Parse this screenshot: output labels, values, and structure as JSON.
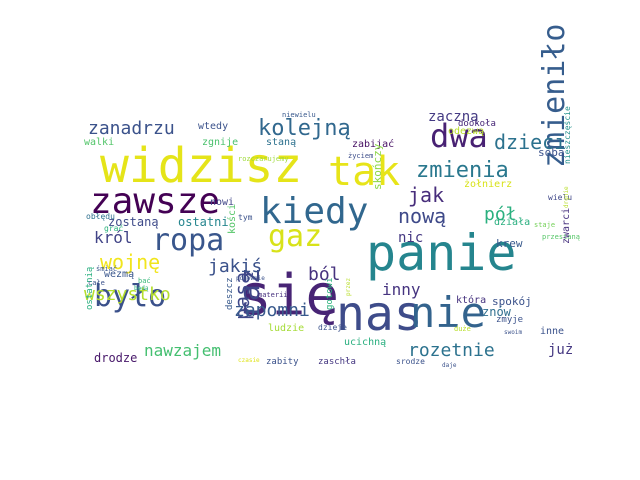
{
  "words": [
    {
      "text": "widzisz",
      "color": "#e5e419"
    },
    {
      "text": "się",
      "color": "#482475"
    },
    {
      "text": "panie",
      "color": "#25858e"
    },
    {
      "text": "nas",
      "color": "#3e4c8a"
    },
    {
      "text": "nie",
      "color": "#33638d"
    },
    {
      "text": "tak",
      "color": "#e7e419"
    },
    {
      "text": "zawsze",
      "color": "#440154"
    },
    {
      "text": "kiedy",
      "color": "#31678e"
    },
    {
      "text": "gaz",
      "color": "#d8e219"
    },
    {
      "text": "ropa",
      "color": "#39568c"
    },
    {
      "text": "było",
      "color": "#3b518b"
    },
    {
      "text": "dwa",
      "color": "#482173"
    },
    {
      "text": "zmieniło",
      "color": "#365d8d"
    },
    {
      "text": "raz",
      "color": "#404688"
    },
    {
      "text": "zmienia",
      "color": "#2a788e"
    },
    {
      "text": "kolejną",
      "color": "#31688e"
    },
    {
      "text": "dzieci",
      "color": "#2c728e"
    },
    {
      "text": "zanadrzu",
      "color": "#3b528b"
    },
    {
      "text": "wojnę",
      "color": "#f1e51d"
    },
    {
      "text": "jak",
      "color": "#472d7b"
    },
    {
      "text": "pasą",
      "color": "#3f4889"
    },
    {
      "text": "nową",
      "color": "#3e4989"
    },
    {
      "text": "pół",
      "color": "#2ab07f"
    },
    {
      "text": "król",
      "color": "#414487"
    },
    {
      "text": "wszystko",
      "color": "#b5de2b"
    },
    {
      "text": "jakiś",
      "color": "#3b528b"
    },
    {
      "text": "ból",
      "color": "#46327e"
    },
    {
      "text": "zapomni",
      "color": "#38598c"
    },
    {
      "text": "inny",
      "color": "#463480"
    },
    {
      "text": "rozetnie",
      "color": "#2c728e"
    },
    {
      "text": "nawzajem",
      "color": "#44bf70"
    },
    {
      "text": "zaczną",
      "color": "#443a83"
    },
    {
      "text": "nic",
      "color": "#453882"
    },
    {
      "text": "znów",
      "color": "#2e6e8e"
    },
    {
      "text": "już",
      "color": "#453882"
    },
    {
      "text": "wtedy",
      "color": "#3b528b"
    },
    {
      "text": "odezwą",
      "color": "#b8de29"
    },
    {
      "text": "zgnije",
      "color": "#4ac16d"
    },
    {
      "text": "walki",
      "color": "#52c569"
    },
    {
      "text": "staną",
      "color": "#2d718e"
    },
    {
      "text": "zabijać",
      "color": "#471063"
    },
    {
      "text": "dookoła",
      "color": "#482878"
    },
    {
      "text": "sobą",
      "color": "#3b528b"
    },
    {
      "text": "niewielu",
      "color": "#38588c"
    },
    {
      "text": "życiem",
      "color": "#3d4e8a"
    },
    {
      "text": "rozczarujemy",
      "color": "#9fda3a"
    },
    {
      "text": "żołnierz",
      "color": "#d8e219"
    },
    {
      "text": "wielu",
      "color": "#3f4788"
    },
    {
      "text": "nieszczęście",
      "color": "#21918c"
    },
    {
      "text": "działa",
      "color": "#29af7f"
    },
    {
      "text": "nowi",
      "color": "#404688"
    },
    {
      "text": "zostaną",
      "color": "#3e4a89"
    },
    {
      "text": "ostatni",
      "color": "#25858e"
    },
    {
      "text": "skończy",
      "color": "#8bd646"
    },
    {
      "text": "obłędu",
      "color": "#2e6f8e"
    },
    {
      "text": "tym",
      "color": "#3b528b"
    },
    {
      "text": "grać",
      "color": "#2db27d"
    },
    {
      "text": "kości",
      "color": "#54c568"
    },
    {
      "text": "wezmą",
      "color": "#39568c"
    },
    {
      "text": "przestaną",
      "color": "#55c667"
    },
    {
      "text": "krew",
      "color": "#38598c"
    },
    {
      "text": "staje",
      "color": "#73d056"
    },
    {
      "text": "drgnie",
      "color": "#b8de29"
    },
    {
      "text": "zwarci",
      "color": "#46307e"
    },
    {
      "text": "ostatnią",
      "color": "#29af7f"
    },
    {
      "text": "śmiać",
      "color": "#39568c"
    },
    {
      "text": "całe",
      "color": "#3b528b"
    },
    {
      "text": "bać",
      "color": "#35b779"
    },
    {
      "text": "będą",
      "color": "#2db27d"
    },
    {
      "text": "deszcz",
      "color": "#38598c"
    },
    {
      "text": "ponownie",
      "color": "#3b528b"
    },
    {
      "text": "materii",
      "color": "#46307e"
    },
    {
      "text": "gotowi",
      "color": "#2db27d"
    },
    {
      "text": "która",
      "color": "#46337f"
    },
    {
      "text": "spokój",
      "color": "#3b528b"
    },
    {
      "text": "zmyje",
      "color": "#3b528b"
    },
    {
      "text": "przez",
      "color": "#b8de29"
    },
    {
      "text": "ludzie",
      "color": "#a5db36"
    },
    {
      "text": "dzieje",
      "color": "#3b528b"
    },
    {
      "text": "zabity",
      "color": "#3b528b"
    },
    {
      "text": "zaschła",
      "color": "#453781"
    },
    {
      "text": "ucichną",
      "color": "#29af7f"
    },
    {
      "text": "drodze",
      "color": "#48186a"
    },
    {
      "text": "srodze",
      "color": "#3b528b"
    },
    {
      "text": "czasie",
      "color": "#dfe318"
    },
    {
      "text": "swoim",
      "color": "#3b528b"
    },
    {
      "text": "duże",
      "color": "#b8de29"
    },
    {
      "text": "daje",
      "color": "#3b528b"
    },
    {
      "text": "inne",
      "color": "#3b528b"
    }
  ]
}
